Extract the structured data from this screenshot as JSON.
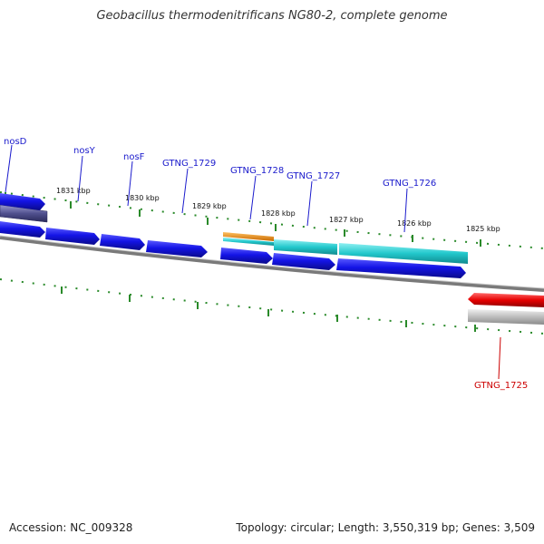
{
  "title": "Geobacillus thermodenitrificans NG80-2, complete genome",
  "accession": "Accession: NC_009328",
  "stats": "Topology: circular; Length: 3,550,319 bp; Genes: 3,509",
  "kbp_labels": [
    "1831 kbp",
    "1830 kbp",
    "1829 kbp",
    "1828 kbp",
    "1827 kbp",
    "1826 kbp",
    "1825 kbp"
  ],
  "gene_labels": {
    "nosD": "nosD",
    "nosY": "nosY",
    "nosF": "nosF",
    "gtng1729": "GTNG_1729",
    "gtng1728": "GTNG_1728",
    "gtng1727": "GTNG_1727",
    "gtng1726": "GTNG_1726",
    "gtng1725": "GTNG_1725"
  },
  "colors": {
    "forward_gene": "#1a1ae6",
    "highlight_gene": "#1fc4c8",
    "orange_feature": "#e08a10",
    "reverse_gene": "#e60000",
    "dark_feature": "#4a4a8a",
    "tick_green": "#2a8a2a",
    "label_blue": "#1a1acc",
    "label_red": "#cc0000"
  }
}
